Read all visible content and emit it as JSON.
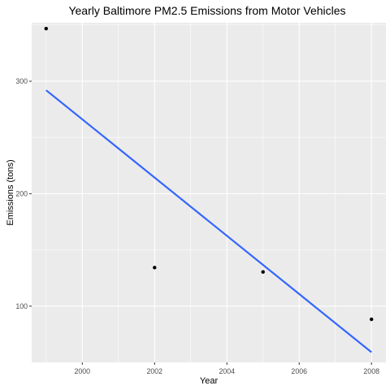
{
  "chart_data": {
    "type": "scatter",
    "title": "Yearly Baltimore PM2.5 Emissions from Motor Vehicles",
    "xlabel": "Year",
    "ylabel": "Emissions (tons)",
    "xlim": [
      1998.6,
      2008.4
    ],
    "ylim": [
      50,
      352
    ],
    "x_ticks": [
      2000,
      2002,
      2004,
      2006,
      2008
    ],
    "x_tick_labels": [
      "2000",
      "2002",
      "2004",
      "2006",
      "2008"
    ],
    "y_ticks": [
      100,
      200,
      300
    ],
    "y_tick_labels": [
      "100",
      "200",
      "300"
    ],
    "grid": true,
    "panel_background": "#ebebeb",
    "grid_color": "#ffffff",
    "series": [
      {
        "values": [
          {
            "x": 1999,
            "y": 346.8
          },
          {
            "x": 2002,
            "y": 134.3
          },
          {
            "x": 2005,
            "y": 130.4
          },
          {
            "x": 2008,
            "y": 88.3
          }
        ],
        "color": "#000000"
      }
    ],
    "trend_line": {
      "method": "linear",
      "points": [
        {
          "x": 1999,
          "y": 292.0
        },
        {
          "x": 2008,
          "y": 59.0
        }
      ],
      "color": "#3366ff"
    }
  }
}
